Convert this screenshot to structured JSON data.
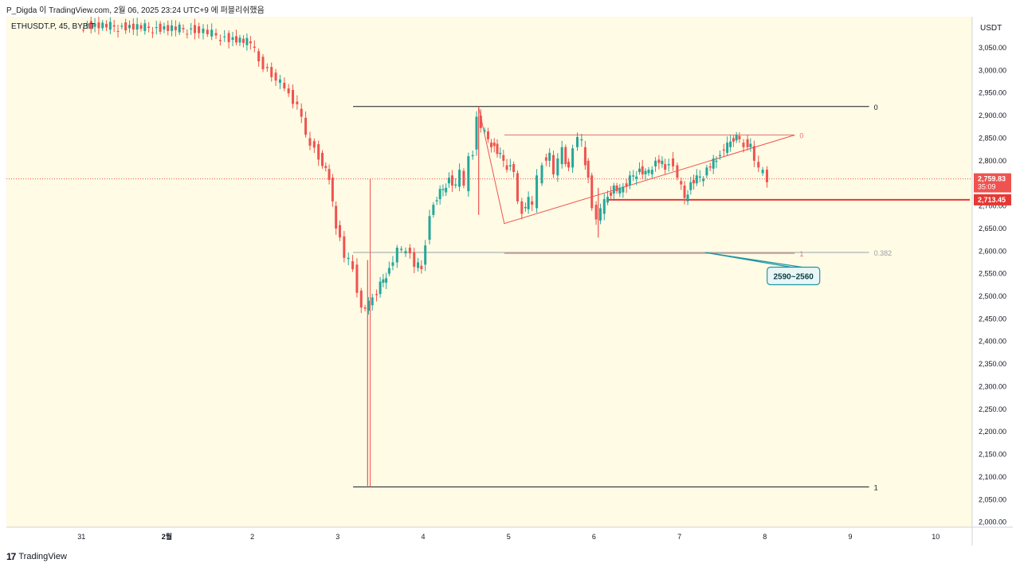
{
  "header": {
    "attribution": "P_Digda 이 TradingView.com, 2월 06, 2025 23:24 UTC+9 에 퍼블리쉬했음"
  },
  "footer": {
    "brand": "TradingView"
  },
  "colors": {
    "bg": "#fffbe4",
    "up": "#26a69a",
    "down": "#ef5350",
    "accent": "#e53935",
    "callout": "#2196a3"
  },
  "chart_data": {
    "type": "candlestick",
    "symbol_label": "ETHUSDT.P, 45, BYBIT",
    "currency": "USDT",
    "ylim": [
      1950,
      3080
    ],
    "xlim": [
      30.0,
      10.4
    ],
    "y_ticks": [
      2000,
      2050,
      2100,
      2150,
      2200,
      2250,
      2300,
      2350,
      2400,
      2450,
      2500,
      2550,
      2600,
      2650,
      2700,
      2750,
      2800,
      2850,
      2900,
      2950,
      3000,
      3050
    ],
    "x_ticks": [
      {
        "x": 31,
        "label": "31"
      },
      {
        "x": 32,
        "label": "2월"
      },
      {
        "x": 33,
        "label": "2"
      },
      {
        "x": 34,
        "label": "3"
      },
      {
        "x": 35,
        "label": "4"
      },
      {
        "x": 36,
        "label": "5"
      },
      {
        "x": 37,
        "label": "6"
      },
      {
        "x": 38,
        "label": "7"
      },
      {
        "x": 39,
        "label": "8"
      },
      {
        "x": 40,
        "label": "9"
      },
      {
        "x": 41,
        "label": "10"
      }
    ],
    "last_price": {
      "value": 2759.83,
      "label": "2,759.83",
      "countdown": "35:09"
    },
    "support_price": {
      "value": 2713.45,
      "label": "2,713.45"
    },
    "price_path": [
      [
        31.0,
        3100
      ],
      [
        32.35,
        3090
      ],
      [
        32.55,
        3080
      ],
      [
        32.75,
        3070
      ],
      [
        33.0,
        3060
      ],
      [
        33.1,
        3020
      ],
      [
        33.25,
        2990
      ],
      [
        33.4,
        2960
      ],
      [
        33.55,
        2920
      ],
      [
        33.65,
        2860
      ],
      [
        33.8,
        2810
      ],
      [
        33.92,
        2760
      ],
      [
        34.0,
        2660
      ],
      [
        34.1,
        2590
      ],
      [
        34.2,
        2560
      ],
      [
        34.3,
        2470
      ],
      [
        34.38,
        2480
      ],
      [
        34.48,
        2510
      ],
      [
        34.55,
        2540
      ],
      [
        34.62,
        2560
      ],
      [
        34.72,
        2600
      ],
      [
        34.82,
        2610
      ],
      [
        34.92,
        2570
      ],
      [
        35.0,
        2560
      ],
      [
        35.05,
        2620
      ],
      [
        35.1,
        2680
      ],
      [
        35.18,
        2720
      ],
      [
        35.25,
        2740
      ],
      [
        35.32,
        2760
      ],
      [
        35.4,
        2740
      ],
      [
        35.45,
        2780
      ],
      [
        35.5,
        2740
      ],
      [
        35.56,
        2800
      ],
      [
        35.6,
        2820
      ],
      [
        35.65,
        2900
      ],
      [
        35.7,
        2870
      ],
      [
        35.78,
        2850
      ],
      [
        35.85,
        2830
      ],
      [
        35.92,
        2810
      ],
      [
        36.0,
        2790
      ],
      [
        36.08,
        2780
      ],
      [
        36.13,
        2700
      ],
      [
        36.18,
        2690
      ],
      [
        36.25,
        2710
      ],
      [
        36.3,
        2700
      ],
      [
        36.36,
        2760
      ],
      [
        36.42,
        2800
      ],
      [
        36.5,
        2810
      ],
      [
        36.55,
        2770
      ],
      [
        36.6,
        2800
      ],
      [
        36.65,
        2820
      ],
      [
        36.72,
        2780
      ],
      [
        36.78,
        2830
      ],
      [
        36.83,
        2850
      ],
      [
        36.88,
        2840
      ],
      [
        36.95,
        2760
      ],
      [
        37.0,
        2700
      ],
      [
        37.05,
        2670
      ],
      [
        37.1,
        2690
      ],
      [
        37.18,
        2720
      ],
      [
        37.25,
        2740
      ],
      [
        37.32,
        2730
      ],
      [
        37.4,
        2750
      ],
      [
        37.48,
        2770
      ],
      [
        37.55,
        2780
      ],
      [
        37.62,
        2770
      ],
      [
        37.7,
        2790
      ],
      [
        37.78,
        2800
      ],
      [
        37.85,
        2780
      ],
      [
        37.9,
        2800
      ],
      [
        37.95,
        2790
      ],
      [
        38.0,
        2760
      ],
      [
        38.08,
        2720
      ],
      [
        38.15,
        2750
      ],
      [
        38.22,
        2760
      ],
      [
        38.3,
        2770
      ],
      [
        38.38,
        2790
      ],
      [
        38.45,
        2800
      ],
      [
        38.5,
        2820
      ],
      [
        38.58,
        2830
      ],
      [
        38.65,
        2850
      ],
      [
        38.72,
        2850
      ],
      [
        38.78,
        2840
      ],
      [
        38.85,
        2830
      ],
      [
        38.9,
        2800
      ],
      [
        38.95,
        2780
      ],
      [
        39.0,
        2770
      ],
      [
        39.05,
        2760
      ]
    ],
    "wicks": [
      {
        "x": 34.35,
        "low": 2080,
        "high": 2580
      },
      {
        "x": 35.65,
        "low": 2680,
        "high": 2920
      },
      {
        "x": 37.05,
        "low": 2630,
        "high": 2740
      }
    ],
    "levels": [
      {
        "name": "fib0-black",
        "y": 2920,
        "x1": 34.18,
        "x2": 40.22,
        "label": "0",
        "color": "#131722"
      },
      {
        "name": "fib1-black",
        "y": 2078,
        "x1": 34.18,
        "x2": 40.22,
        "label": "1",
        "color": "#131722"
      },
      {
        "name": "fib0-red",
        "y": 2857,
        "x1": 35.95,
        "x2": 39.35,
        "label": "0",
        "color": "#e57373"
      },
      {
        "name": "fib1-red",
        "y": 2595,
        "x1": 35.95,
        "x2": 39.35,
        "label": "1",
        "color": "#e57373"
      },
      {
        "name": "fib382",
        "y": 2597,
        "x1": 34.18,
        "x2": 40.22,
        "label": "0.382",
        "color": "#9aa0a6"
      },
      {
        "name": "support",
        "y": 2713.45,
        "x1": 37.15,
        "x2": 41.4,
        "label": "",
        "color": "#e53935"
      }
    ],
    "wedge": {
      "apex": [
        35.65,
        2918
      ],
      "low": [
        35.95,
        2661
      ],
      "upper_end": [
        39.35,
        2857
      ]
    },
    "callout": {
      "text": "2590~2560",
      "x": 39.4,
      "y": 2545,
      "pointer": [
        38.3,
        2597
      ]
    },
    "spike_line": {
      "x": 34.38,
      "low": 2078,
      "high": 2760
    }
  }
}
